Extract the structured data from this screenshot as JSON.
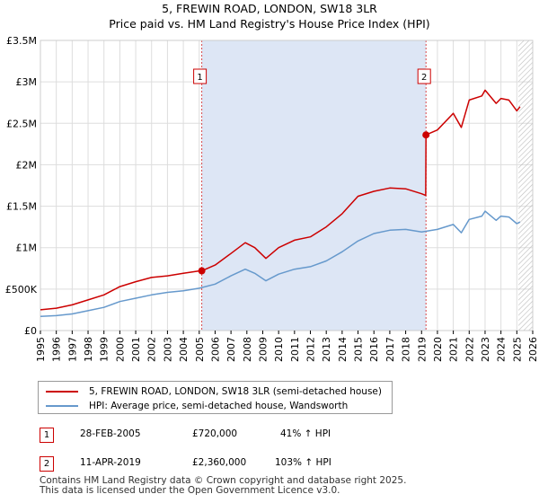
{
  "header": {
    "title_line1": "5, FREWIN ROAD, LONDON, SW18 3LR",
    "title_line2": "Price paid vs. HM Land Registry's House Price Index (HPI)"
  },
  "colors": {
    "property_line": "#cc0000",
    "hpi_line": "#6699cc",
    "shade": "#dde6f5",
    "grid": "#dddddd",
    "marker_border": "#cc0000"
  },
  "chart_data": {
    "type": "line",
    "xlim": [
      1995,
      2026
    ],
    "ylim": [
      0,
      3500000
    ],
    "x_ticks": [
      1995,
      1996,
      1997,
      1998,
      1999,
      2000,
      2001,
      2002,
      2003,
      2004,
      2005,
      2006,
      2007,
      2008,
      2009,
      2010,
      2011,
      2012,
      2013,
      2014,
      2015,
      2016,
      2017,
      2018,
      2019,
      2020,
      2021,
      2022,
      2023,
      2024,
      2025,
      2026
    ],
    "y_ticks": [
      {
        "value": 0,
        "label": "£0"
      },
      {
        "value": 500000,
        "label": "£500K"
      },
      {
        "value": 1000000,
        "label": "£1M"
      },
      {
        "value": 1500000,
        "label": "£1.5M"
      },
      {
        "value": 2000000,
        "label": "£2M"
      },
      {
        "value": 2500000,
        "label": "£2.5M"
      },
      {
        "value": 3000000,
        "label": "£3M"
      },
      {
        "value": 3500000,
        "label": "£3.5M"
      }
    ],
    "shaded_region": [
      2005.16,
      2019.28
    ],
    "hatch_from": 2025.1,
    "series": [
      {
        "name": "5, FREWIN ROAD, LONDON, SW18 3LR (semi-detached house)",
        "color": "#cc0000",
        "x": [
          1995,
          1996,
          1997,
          1998,
          1999,
          2000,
          2001,
          2002,
          2003,
          2004,
          2005,
          2005.16,
          2006,
          2007,
          2007.9,
          2008.5,
          2009.2,
          2010,
          2011,
          2012,
          2013,
          2014,
          2015,
          2016,
          2017,
          2018,
          2019,
          2019.26,
          2019.28,
          2020,
          2021,
          2021.5,
          2022,
          2022.8,
          2023,
          2023.7,
          2024,
          2024.5,
          2025,
          2025.2
        ],
        "values": [
          250000,
          270000,
          310000,
          370000,
          430000,
          530000,
          590000,
          640000,
          660000,
          690000,
          720000,
          720000,
          790000,
          930000,
          1060000,
          1000000,
          870000,
          1000000,
          1090000,
          1130000,
          1250000,
          1410000,
          1620000,
          1680000,
          1720000,
          1710000,
          1650000,
          1630000,
          2360000,
          2420000,
          2620000,
          2450000,
          2780000,
          2830000,
          2900000,
          2740000,
          2800000,
          2780000,
          2650000,
          2700000
        ]
      },
      {
        "name": "HPI: Average price, semi-detached house, Wandsworth",
        "color": "#6699cc",
        "x": [
          1995,
          1996,
          1997,
          1998,
          1999,
          2000,
          2001,
          2002,
          2003,
          2004,
          2005,
          2006,
          2007,
          2007.9,
          2008.5,
          2009.2,
          2010,
          2011,
          2012,
          2013,
          2014,
          2015,
          2016,
          2017,
          2018,
          2019,
          2020,
          2021,
          2021.5,
          2022,
          2022.8,
          2023,
          2023.7,
          2024,
          2024.5,
          2025,
          2025.2
        ],
        "values": [
          170000,
          180000,
          200000,
          240000,
          280000,
          350000,
          390000,
          430000,
          460000,
          480000,
          510000,
          560000,
          660000,
          740000,
          690000,
          600000,
          680000,
          740000,
          770000,
          840000,
          950000,
          1080000,
          1170000,
          1210000,
          1220000,
          1190000,
          1220000,
          1280000,
          1180000,
          1340000,
          1380000,
          1440000,
          1330000,
          1380000,
          1370000,
          1290000,
          1310000
        ]
      }
    ],
    "markers": [
      {
        "label": "1",
        "x": 2005.16,
        "value": 720000
      },
      {
        "label": "2",
        "x": 2019.28,
        "value": 2360000
      }
    ]
  },
  "legend": {
    "items": [
      {
        "label": "5, FREWIN ROAD, LONDON, SW18 3LR (semi-detached house)",
        "color": "#cc0000"
      },
      {
        "label": "HPI: Average price, semi-detached house, Wandsworth",
        "color": "#6699cc"
      }
    ]
  },
  "sales": [
    {
      "num": "1",
      "date": "28-FEB-2005",
      "price": "£720,000",
      "hpi": "41% ↑ HPI"
    },
    {
      "num": "2",
      "date": "11-APR-2019",
      "price": "£2,360,000",
      "hpi": "103% ↑ HPI"
    }
  ],
  "footer": {
    "line1": "Contains HM Land Registry data © Crown copyright and database right 2025.",
    "line2": "This data is licensed under the Open Government Licence v3.0."
  }
}
